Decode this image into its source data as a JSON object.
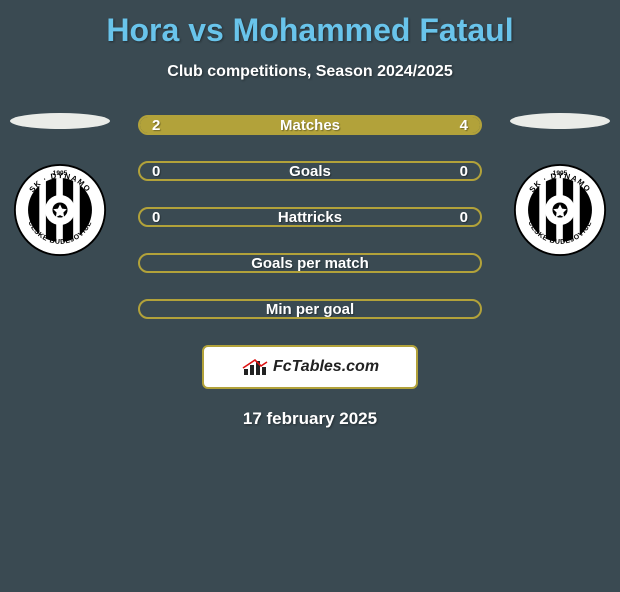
{
  "title": "Hora vs Mohammed Fataul",
  "title_color": "#69c4eb",
  "subtitle": "Club competitions, Season 2024/2025",
  "background_color": "#3a4a52",
  "accent_color": "#b2a23a",
  "text_color": "#ffffff",
  "ellipse_color": "#eaece8",
  "badge": {
    "year": "1905",
    "ring_text_top": "SK DYNAMO",
    "ring_text_bottom": "ČESKÉ BUDĚJOVICE"
  },
  "bars": {
    "border_color": "#b2a23a",
    "fill_color": "#b2a23a",
    "height": 20,
    "radius": 10,
    "items": [
      {
        "label": "Matches",
        "left": "2",
        "right": "4",
        "left_pct": 33,
        "right_pct": 67
      },
      {
        "label": "Goals",
        "left": "0",
        "right": "0",
        "left_pct": 0,
        "right_pct": 0
      },
      {
        "label": "Hattricks",
        "left": "0",
        "right": "0",
        "left_pct": 0,
        "right_pct": 0
      },
      {
        "label": "Goals per match",
        "left": "",
        "right": "",
        "left_pct": 0,
        "right_pct": 0
      },
      {
        "label": "Min per goal",
        "left": "",
        "right": "",
        "left_pct": 0,
        "right_pct": 0
      }
    ]
  },
  "watermark": {
    "text": "FcTables.com"
  },
  "date": "17 february 2025"
}
